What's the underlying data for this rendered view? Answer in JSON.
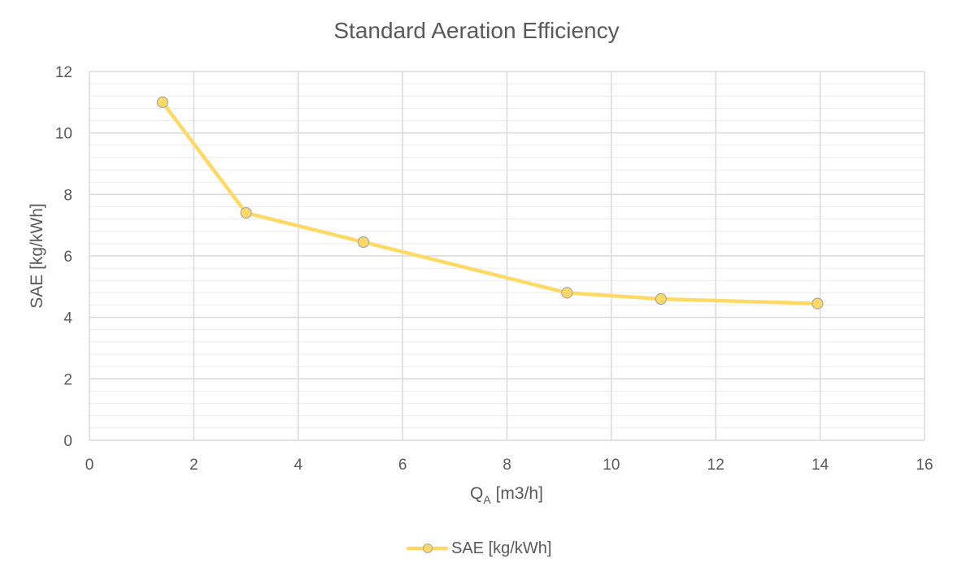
{
  "chart_data": {
    "type": "scatter",
    "title": "Standard Aeration Efficiency",
    "xlabel": "Q",
    "xlabel_subscript": "A",
    "xlabel_unit": " [m3/h]",
    "ylabel": "SAE [kg/kWh]",
    "xlim": [
      0,
      16
    ],
    "ylim": [
      0,
      12
    ],
    "x_ticks": [
      0,
      2,
      4,
      6,
      8,
      10,
      12,
      14,
      16
    ],
    "y_ticks": [
      0,
      2,
      4,
      6,
      8,
      10,
      12
    ],
    "grid": true,
    "legend_position": "bottom",
    "series": [
      {
        "name": "SAE [kg/kWh]",
        "color": "#FFD966",
        "x": [
          1.4,
          3.0,
          5.25,
          9.15,
          10.95,
          13.95
        ],
        "y": [
          11.0,
          7.4,
          6.45,
          4.8,
          4.6,
          4.45
        ]
      }
    ]
  }
}
